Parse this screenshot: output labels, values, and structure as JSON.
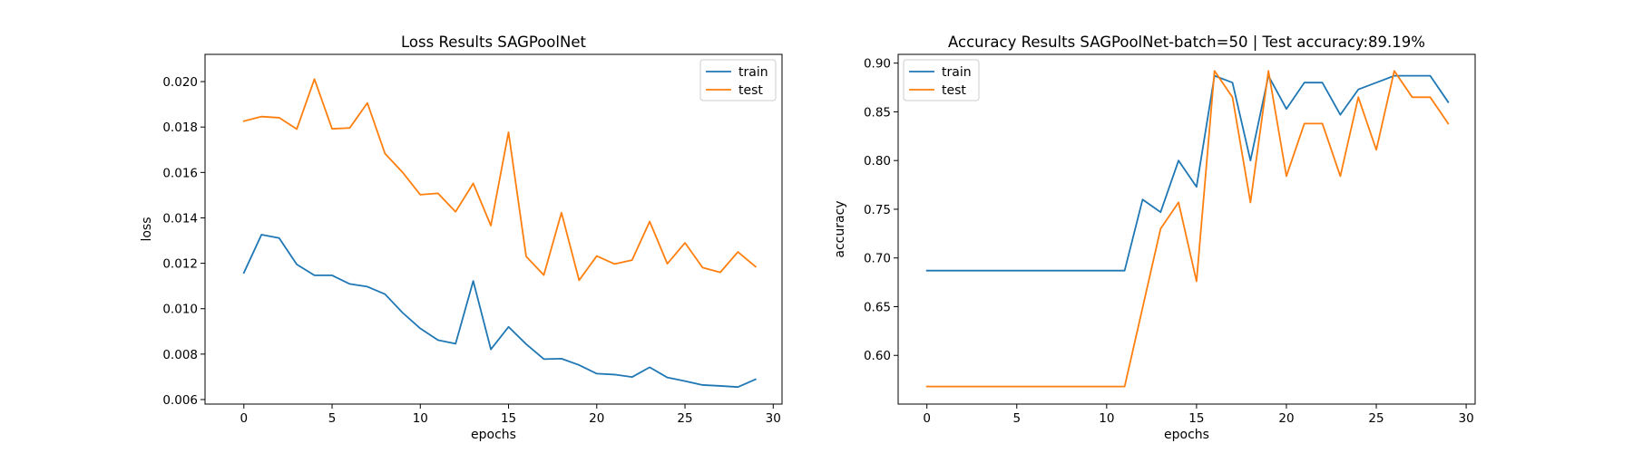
{
  "chart_data": [
    {
      "type": "line",
      "title": "Loss Results SAGPoolNet",
      "xlabel": "epochs",
      "ylabel": "loss",
      "xlim": [
        -2.2,
        30.5
      ],
      "ylim": [
        0.0058,
        0.0212
      ],
      "xticks": [
        0,
        5,
        10,
        15,
        20,
        25,
        30
      ],
      "yticks": [
        0.006,
        0.008,
        0.01,
        0.012,
        0.014,
        0.016,
        0.018,
        0.02
      ],
      "ytick_labels": [
        "0.006",
        "0.008",
        "0.010",
        "0.012",
        "0.014",
        "0.016",
        "0.018",
        "0.020"
      ],
      "legend": "top-right",
      "grid": false,
      "x": [
        0,
        1,
        2,
        3,
        4,
        5,
        6,
        7,
        8,
        9,
        10,
        11,
        12,
        13,
        14,
        15,
        16,
        17,
        18,
        19,
        20,
        21,
        22,
        23,
        24,
        25,
        26,
        27,
        28,
        29
      ],
      "series": [
        {
          "name": "train",
          "color": "#1f77b4",
          "values": [
            0.01158,
            0.01326,
            0.01311,
            0.01195,
            0.01147,
            0.01147,
            0.01109,
            0.01097,
            0.01064,
            0.00982,
            0.00913,
            0.00862,
            0.00846,
            0.01122,
            0.00821,
            0.0092,
            0.00844,
            0.00778,
            0.0078,
            0.00752,
            0.00714,
            0.0071,
            0.00699,
            0.00742,
            0.00697,
            0.00681,
            0.00664,
            0.0066,
            0.00655,
            0.00689
          ]
        },
        {
          "name": "test",
          "color": "#ff7f0e",
          "values": [
            0.01826,
            0.01846,
            0.01841,
            0.01791,
            0.02011,
            0.01792,
            0.01796,
            0.01906,
            0.01683,
            0.016,
            0.01502,
            0.01508,
            0.01427,
            0.01552,
            0.01366,
            0.01777,
            0.0123,
            0.01148,
            0.01423,
            0.01125,
            0.01232,
            0.01197,
            0.01214,
            0.01384,
            0.01198,
            0.0129,
            0.01181,
            0.0116,
            0.0125,
            0.01185
          ]
        }
      ]
    },
    {
      "type": "line",
      "title": "Accuracy Results SAGPoolNet-batch=50 | Test accuracy:89.19%",
      "xlabel": "epochs",
      "ylabel": "accuracy",
      "xlim": [
        -1.6,
        30.5
      ],
      "ylim": [
        0.55,
        0.909
      ],
      "xticks": [
        0,
        5,
        10,
        15,
        20,
        25,
        30
      ],
      "yticks": [
        0.6,
        0.65,
        0.7,
        0.75,
        0.8,
        0.85,
        0.9
      ],
      "ytick_labels": [
        "0.60",
        "0.65",
        "0.70",
        "0.75",
        "0.80",
        "0.85",
        "0.90"
      ],
      "legend": "top-left",
      "grid": false,
      "x": [
        0,
        1,
        2,
        3,
        4,
        5,
        6,
        7,
        8,
        9,
        10,
        11,
        12,
        13,
        14,
        15,
        16,
        17,
        18,
        19,
        20,
        21,
        22,
        23,
        24,
        25,
        26,
        27,
        28,
        29
      ],
      "series": [
        {
          "name": "train",
          "color": "#1f77b4",
          "values": [
            0.687,
            0.687,
            0.687,
            0.687,
            0.687,
            0.687,
            0.687,
            0.687,
            0.687,
            0.687,
            0.687,
            0.687,
            0.76,
            0.747,
            0.8,
            0.773,
            0.887,
            0.88,
            0.8,
            0.887,
            0.853,
            0.88,
            0.88,
            0.847,
            0.873,
            0.88,
            0.887,
            0.887,
            0.887,
            0.86
          ]
        },
        {
          "name": "test",
          "color": "#ff7f0e",
          "values": [
            0.568,
            0.568,
            0.568,
            0.568,
            0.568,
            0.568,
            0.568,
            0.568,
            0.568,
            0.568,
            0.568,
            0.568,
            0.649,
            0.73,
            0.757,
            0.676,
            0.892,
            0.865,
            0.757,
            0.892,
            0.784,
            0.838,
            0.838,
            0.784,
            0.865,
            0.811,
            0.892,
            0.865,
            0.865,
            0.838
          ]
        }
      ]
    }
  ]
}
